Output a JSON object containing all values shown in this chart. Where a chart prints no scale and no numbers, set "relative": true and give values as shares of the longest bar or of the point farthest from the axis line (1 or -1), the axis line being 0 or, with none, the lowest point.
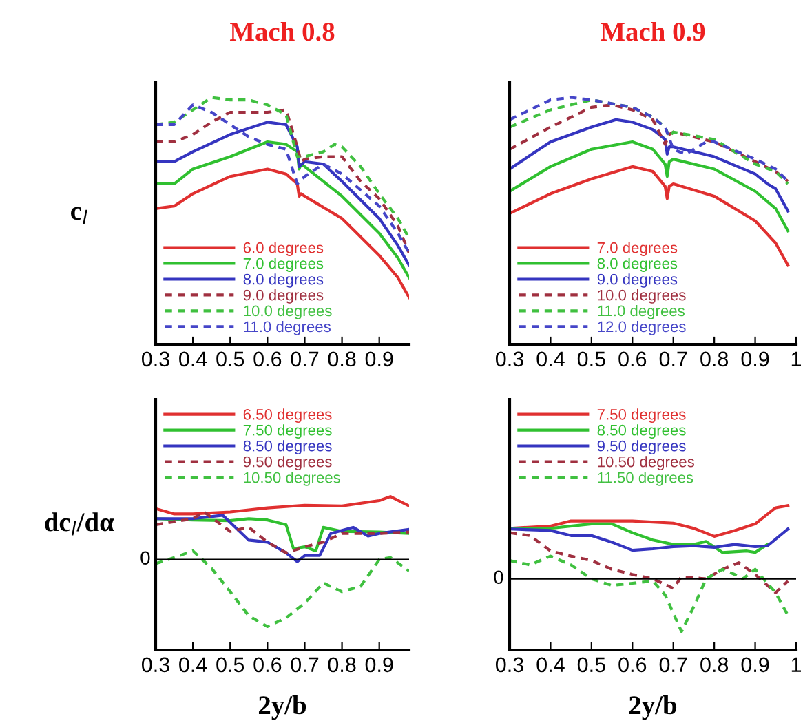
{
  "chart_data": [
    {
      "type": "line",
      "title": "Mach 0.8",
      "ylabel": "c$_{l}$",
      "relative": true,
      "xlim": [
        0.3,
        0.98
      ],
      "xticks": [
        0.3,
        0.4,
        0.5,
        0.6,
        0.7,
        0.8,
        0.9
      ],
      "legend": "bottom left",
      "grid": false,
      "marker": "none",
      "series": [
        {
          "name": "6.0 degrees",
          "color": "#e03030",
          "line_style": "solid",
          "x": [
            0.3,
            0.35,
            0.4,
            0.5,
            0.6,
            0.65,
            0.68,
            0.685,
            0.69,
            0.7,
            0.8,
            0.9,
            0.95,
            0.98
          ],
          "values": [
            0.55,
            0.56,
            0.61,
            0.68,
            0.71,
            0.69,
            0.65,
            0.6,
            0.61,
            0.6,
            0.51,
            0.36,
            0.27,
            0.19
          ]
        },
        {
          "name": "7.0 degrees",
          "color": "#30c030",
          "line_style": "solid",
          "x": [
            0.3,
            0.35,
            0.4,
            0.5,
            0.6,
            0.65,
            0.68,
            0.685,
            0.69,
            0.7,
            0.8,
            0.9,
            0.95,
            0.98
          ],
          "values": [
            0.65,
            0.65,
            0.71,
            0.76,
            0.82,
            0.81,
            0.78,
            0.71,
            0.73,
            0.72,
            0.6,
            0.45,
            0.35,
            0.27
          ]
        },
        {
          "name": "8.0 degrees",
          "color": "#3535c0",
          "line_style": "solid",
          "x": [
            0.3,
            0.35,
            0.4,
            0.5,
            0.6,
            0.65,
            0.68,
            0.685,
            0.7,
            0.75,
            0.8,
            0.9,
            0.95,
            0.98
          ],
          "values": [
            0.74,
            0.74,
            0.78,
            0.85,
            0.9,
            0.89,
            0.8,
            0.72,
            0.74,
            0.73,
            0.66,
            0.51,
            0.4,
            0.32
          ]
        },
        {
          "name": "9.0 degrees",
          "color": "#a03040",
          "line_style": "dashed",
          "x": [
            0.3,
            0.35,
            0.4,
            0.45,
            0.5,
            0.6,
            0.65,
            0.68,
            0.69,
            0.7,
            0.75,
            0.8,
            0.85,
            0.9,
            0.95,
            0.98
          ],
          "values": [
            0.82,
            0.82,
            0.85,
            0.9,
            0.94,
            0.94,
            0.95,
            0.8,
            0.74,
            0.75,
            0.76,
            0.76,
            0.66,
            0.59,
            0.48,
            0.37
          ]
        },
        {
          "name": "10.0 degrees",
          "color": "#40c040",
          "line_style": "dashed",
          "x": [
            0.3,
            0.35,
            0.4,
            0.45,
            0.5,
            0.55,
            0.6,
            0.65,
            0.68,
            0.7,
            0.75,
            0.78,
            0.8,
            0.85,
            0.9,
            0.95,
            0.98
          ],
          "values": [
            0.89,
            0.9,
            0.95,
            1.0,
            0.99,
            0.99,
            0.97,
            0.93,
            0.76,
            0.76,
            0.78,
            0.81,
            0.8,
            0.72,
            0.61,
            0.51,
            0.43
          ]
        },
        {
          "name": "11.0 degrees",
          "color": "#4545c8",
          "line_style": "dashed",
          "x": [
            0.3,
            0.35,
            0.4,
            0.45,
            0.5,
            0.55,
            0.6,
            0.65,
            0.68,
            0.7,
            0.75,
            0.8,
            0.9,
            0.95,
            0.98
          ],
          "values": [
            0.89,
            0.89,
            0.97,
            0.94,
            0.89,
            0.84,
            0.81,
            0.79,
            0.65,
            0.68,
            0.73,
            0.69,
            0.56,
            0.45,
            0.37
          ]
        }
      ]
    },
    {
      "type": "line",
      "title": "Mach 0.9",
      "relative": true,
      "xlim": [
        0.3,
        1.0
      ],
      "xticks": [
        0.3,
        0.4,
        0.5,
        0.6,
        0.7,
        0.8,
        0.9,
        1
      ],
      "legend": "bottom left",
      "grid": false,
      "marker": "none",
      "series": [
        {
          "name": "7.0 degrees",
          "color": "#e03030",
          "line_style": "solid",
          "x": [
            0.3,
            0.4,
            0.5,
            0.6,
            0.65,
            0.68,
            0.685,
            0.69,
            0.7,
            0.8,
            0.9,
            0.95,
            0.98
          ],
          "values": [
            0.53,
            0.61,
            0.67,
            0.72,
            0.7,
            0.64,
            0.59,
            0.64,
            0.65,
            0.6,
            0.5,
            0.41,
            0.32
          ]
        },
        {
          "name": "8.0 degrees",
          "color": "#30c030",
          "line_style": "solid",
          "x": [
            0.3,
            0.4,
            0.5,
            0.6,
            0.65,
            0.68,
            0.685,
            0.69,
            0.7,
            0.8,
            0.9,
            0.95,
            0.98
          ],
          "values": [
            0.62,
            0.72,
            0.79,
            0.82,
            0.79,
            0.73,
            0.68,
            0.74,
            0.75,
            0.71,
            0.62,
            0.55,
            0.46
          ]
        },
        {
          "name": "9.0 degrees",
          "color": "#3535c0",
          "line_style": "solid",
          "x": [
            0.3,
            0.4,
            0.5,
            0.56,
            0.6,
            0.65,
            0.68,
            0.685,
            0.69,
            0.7,
            0.8,
            0.9,
            0.93,
            0.95,
            0.98
          ],
          "values": [
            0.71,
            0.82,
            0.88,
            0.91,
            0.9,
            0.87,
            0.83,
            0.77,
            0.8,
            0.8,
            0.76,
            0.69,
            0.65,
            0.63,
            0.54
          ]
        },
        {
          "name": "10.0 degrees",
          "color": "#a03040",
          "line_style": "dashed",
          "x": [
            0.3,
            0.4,
            0.5,
            0.55,
            0.6,
            0.65,
            0.68,
            0.69,
            0.7,
            0.8,
            0.9,
            0.95,
            0.98
          ],
          "values": [
            0.79,
            0.88,
            0.96,
            0.97,
            0.95,
            0.91,
            0.81,
            0.85,
            0.86,
            0.82,
            0.74,
            0.7,
            0.66
          ]
        },
        {
          "name": "11.0 degrees",
          "color": "#40c040",
          "line_style": "dashed",
          "x": [
            0.3,
            0.4,
            0.5,
            0.6,
            0.65,
            0.68,
            0.69,
            0.7,
            0.8,
            0.9,
            0.95,
            0.98
          ],
          "values": [
            0.88,
            0.95,
            0.99,
            0.96,
            0.92,
            0.88,
            0.84,
            0.86,
            0.83,
            0.73,
            0.7,
            0.65
          ]
        },
        {
          "name": "12.0 degrees",
          "color": "#4545c8",
          "line_style": "dashed",
          "x": [
            0.3,
            0.4,
            0.45,
            0.5,
            0.6,
            0.65,
            0.68,
            0.7,
            0.73,
            0.78,
            0.8,
            0.9,
            0.95,
            0.98
          ],
          "values": [
            0.91,
            0.99,
            1.0,
            0.99,
            0.96,
            0.92,
            0.88,
            0.79,
            0.77,
            0.82,
            0.82,
            0.75,
            0.71,
            0.66
          ]
        }
      ]
    },
    {
      "type": "line",
      "ylabel": "dc$_{l}$/dα",
      "xlabel": "2y/b",
      "relative": true,
      "xlim": [
        0.3,
        0.98
      ],
      "xticks": [
        0.3,
        0.4,
        0.5,
        0.6,
        0.7,
        0.8,
        0.9
      ],
      "legend": "top left",
      "grid": false,
      "marker": "none",
      "ref_lines": [
        {
          "axis": "y",
          "value": 0,
          "label": "0",
          "color": "#000000"
        }
      ],
      "series": [
        {
          "name": "6.50 degrees",
          "color": "#e03030",
          "line_style": "solid",
          "x": [
            0.3,
            0.35,
            0.4,
            0.5,
            0.6,
            0.7,
            0.8,
            0.9,
            0.93,
            0.98
          ],
          "values": [
            0.76,
            0.68,
            0.68,
            0.71,
            0.77,
            0.81,
            0.8,
            0.88,
            0.94,
            0.8
          ]
        },
        {
          "name": "7.50 degrees",
          "color": "#30c030",
          "line_style": "solid",
          "x": [
            0.3,
            0.4,
            0.5,
            0.55,
            0.6,
            0.65,
            0.67,
            0.7,
            0.73,
            0.75,
            0.8,
            0.9,
            0.98
          ],
          "values": [
            0.61,
            0.59,
            0.58,
            0.61,
            0.59,
            0.52,
            0.16,
            0.19,
            0.13,
            0.48,
            0.42,
            0.41,
            0.39
          ]
        },
        {
          "name": "8.50 degrees",
          "color": "#3535c0",
          "line_style": "solid",
          "x": [
            0.3,
            0.4,
            0.48,
            0.55,
            0.6,
            0.65,
            0.68,
            0.7,
            0.74,
            0.77,
            0.83,
            0.87,
            0.9,
            0.98
          ],
          "values": [
            0.61,
            0.61,
            0.66,
            0.29,
            0.26,
            0.1,
            -0.03,
            0.06,
            0.06,
            0.39,
            0.48,
            0.35,
            0.39,
            0.45
          ]
        },
        {
          "name": "9.50 degrees",
          "color": "#a03040",
          "line_style": "dashed",
          "x": [
            0.3,
            0.4,
            0.43,
            0.5,
            0.55,
            0.6,
            0.65,
            0.7,
            0.75,
            0.8,
            0.9,
            0.98
          ],
          "values": [
            0.52,
            0.61,
            0.71,
            0.42,
            0.48,
            0.26,
            0.1,
            0.19,
            0.26,
            0.39,
            0.39,
            0.41
          ]
        },
        {
          "name": "10.50 degrees",
          "color": "#40c040",
          "line_style": "dashed",
          "x": [
            0.3,
            0.35,
            0.4,
            0.45,
            0.5,
            0.55,
            0.6,
            0.65,
            0.7,
            0.75,
            0.8,
            0.85,
            0.9,
            0.93,
            0.98
          ],
          "values": [
            -0.06,
            0.03,
            0.13,
            -0.13,
            -0.48,
            -0.84,
            -1.0,
            -0.87,
            -0.65,
            -0.35,
            -0.48,
            -0.4,
            0.0,
            0.03,
            -0.17
          ]
        }
      ]
    },
    {
      "type": "line",
      "xlabel": "2y/b",
      "relative": true,
      "xlim": [
        0.3,
        1.0
      ],
      "xticks": [
        0.3,
        0.4,
        0.5,
        0.6,
        0.7,
        0.8,
        0.9,
        1
      ],
      "legend": "top left",
      "grid": false,
      "marker": "none",
      "ref_lines": [
        {
          "axis": "y",
          "value": 0,
          "label": "0",
          "color": "#000000"
        }
      ],
      "series": [
        {
          "name": "7.50 degrees",
          "color": "#e03030",
          "line_style": "solid",
          "x": [
            0.3,
            0.4,
            0.45,
            0.6,
            0.7,
            0.75,
            0.8,
            0.85,
            0.9,
            0.95,
            0.98
          ],
          "values": [
            0.69,
            0.72,
            0.79,
            0.79,
            0.76,
            0.69,
            0.58,
            0.66,
            0.75,
            0.97,
            1.0
          ]
        },
        {
          "name": "8.50 degrees",
          "color": "#30c030",
          "line_style": "solid",
          "x": [
            0.3,
            0.4,
            0.5,
            0.55,
            0.6,
            0.65,
            0.7,
            0.75,
            0.78,
            0.82,
            0.88,
            0.9,
            0.93
          ],
          "values": [
            0.69,
            0.69,
            0.75,
            0.75,
            0.63,
            0.53,
            0.47,
            0.47,
            0.51,
            0.36,
            0.38,
            0.36,
            0.47
          ]
        },
        {
          "name": "9.50 degrees",
          "color": "#3535c0",
          "line_style": "solid",
          "x": [
            0.3,
            0.4,
            0.45,
            0.5,
            0.55,
            0.6,
            0.65,
            0.7,
            0.75,
            0.8,
            0.85,
            0.9,
            0.93,
            0.98
          ],
          "values": [
            0.68,
            0.66,
            0.59,
            0.59,
            0.5,
            0.39,
            0.41,
            0.44,
            0.45,
            0.43,
            0.47,
            0.44,
            0.45,
            0.68
          ]
        },
        {
          "name": "10.50 degrees",
          "color": "#a03040",
          "line_style": "dashed",
          "x": [
            0.3,
            0.35,
            0.4,
            0.45,
            0.5,
            0.55,
            0.6,
            0.65,
            0.7,
            0.72,
            0.78,
            0.82,
            0.86,
            0.9,
            0.95,
            0.98
          ],
          "values": [
            0.63,
            0.59,
            0.38,
            0.31,
            0.25,
            0.13,
            0.06,
            0.0,
            -0.13,
            0.03,
            0.0,
            0.13,
            0.22,
            0.06,
            -0.19,
            -0.03
          ]
        },
        {
          "name": "11.50 degrees",
          "color": "#40c040",
          "line_style": "dashed",
          "x": [
            0.3,
            0.35,
            0.4,
            0.45,
            0.5,
            0.55,
            0.6,
            0.65,
            0.68,
            0.72,
            0.75,
            0.78,
            0.82,
            0.85,
            0.87,
            0.9,
            0.95,
            0.98
          ],
          "values": [
            0.25,
            0.19,
            0.31,
            0.19,
            0.0,
            -0.09,
            -0.06,
            -0.03,
            -0.22,
            -0.72,
            -0.38,
            0.0,
            0.13,
            0.06,
            0.0,
            0.13,
            -0.19,
            -0.5
          ]
        }
      ]
    }
  ]
}
